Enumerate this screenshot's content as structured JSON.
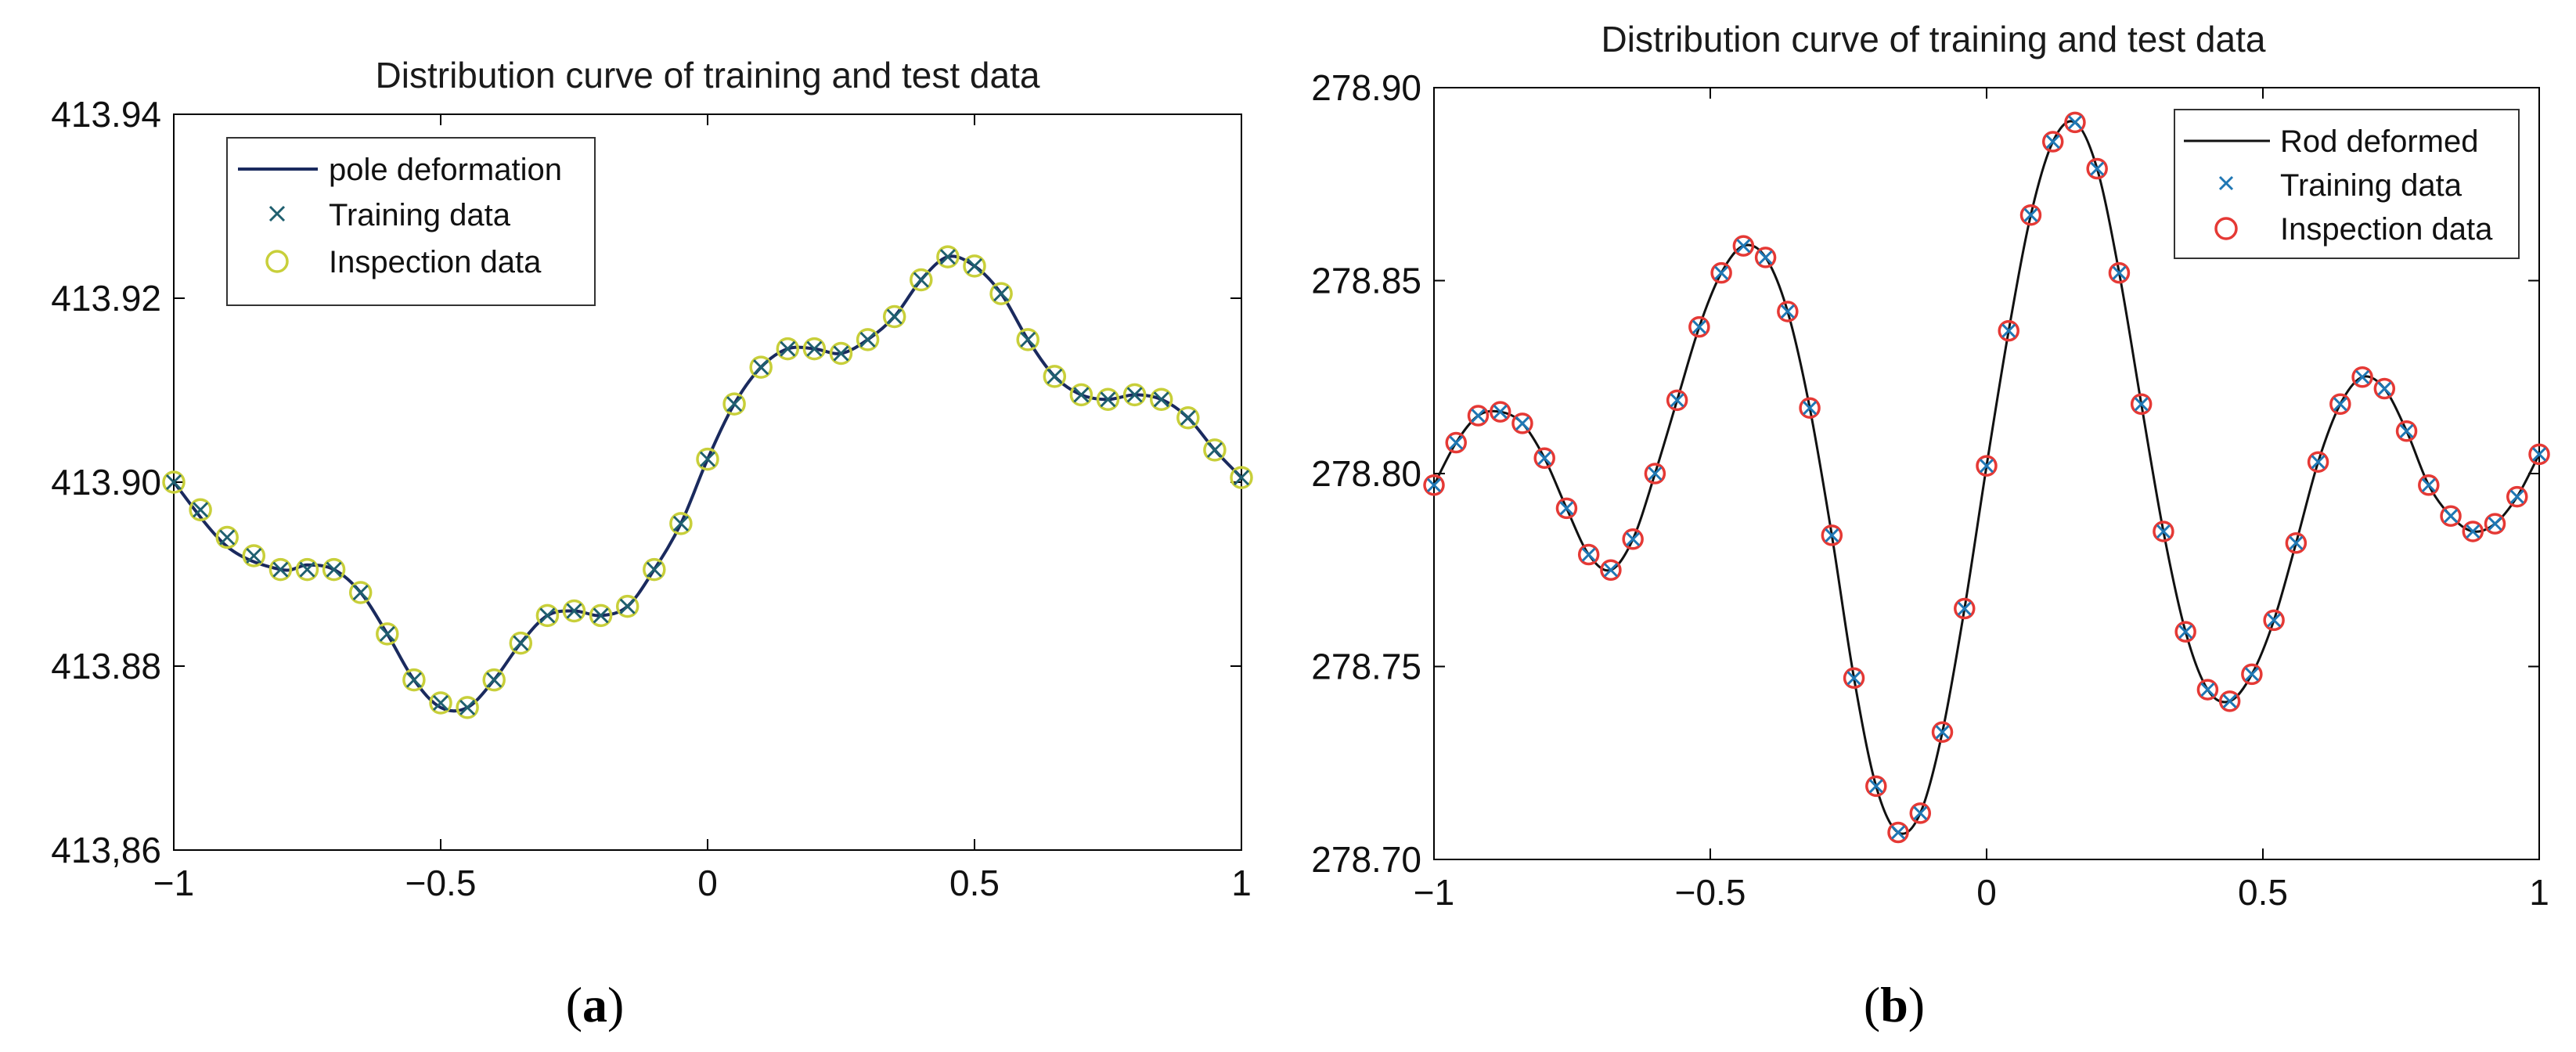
{
  "chart_data": [
    {
      "type": "line",
      "panel": "a",
      "title": "Distribution curve of training and test data",
      "caption_open": "(",
      "caption_letter": "a",
      "caption_close": ")",
      "xlim": [
        -1,
        1
      ],
      "ylim": [
        413.86,
        413.94
      ],
      "xticks": [
        -1,
        -0.5,
        0,
        0.5,
        1
      ],
      "xtick_labels": [
        "−1",
        "−0.5",
        "0",
        "0.5",
        "1"
      ],
      "yticks": [
        413.86,
        413.88,
        413.9,
        413.92,
        413.94
      ],
      "ytick_labels": [
        "413,86",
        "413.88",
        "413.90",
        "413.92",
        "413.94"
      ],
      "legend_position": "top-left",
      "colors": {
        "line": "#1a2a5e",
        "train": "#1f5f6f",
        "inspect": "#c8cf3a"
      },
      "series": [
        {
          "name": "pole deformation",
          "kind": "line",
          "x": [
            -1.0,
            -0.9,
            -0.8,
            -0.75,
            -0.7,
            -0.65,
            -0.6,
            -0.55,
            -0.5,
            -0.45,
            -0.4,
            -0.35,
            -0.3,
            -0.25,
            -0.2,
            -0.15,
            -0.1,
            -0.05,
            0.0,
            0.05,
            0.1,
            0.15,
            0.2,
            0.25,
            0.3,
            0.35,
            0.4,
            0.45,
            0.5,
            0.55,
            0.6,
            0.65,
            0.7,
            0.75,
            0.8,
            0.85,
            0.9,
            0.95,
            1.0
          ],
          "y": [
            413.9,
            413.893,
            413.8905,
            413.891,
            413.8905,
            413.888,
            413.8835,
            413.8785,
            413.8755,
            413.8755,
            413.8785,
            413.8825,
            413.8855,
            413.886,
            413.8855,
            413.8865,
            413.8905,
            413.8955,
            413.9025,
            413.9085,
            413.9125,
            413.9145,
            413.9145,
            413.914,
            413.9155,
            413.918,
            413.922,
            413.9245,
            413.9235,
            413.9205,
            413.9155,
            413.9115,
            413.9095,
            413.909,
            413.9095,
            413.909,
            413.907,
            413.9035,
            413.9005
          ]
        },
        {
          "name": "Training data",
          "kind": "marker-x",
          "x": [
            -1.0,
            -0.95,
            -0.9,
            -0.85,
            -0.8,
            -0.75,
            -0.7,
            -0.65,
            -0.6,
            -0.55,
            -0.5,
            -0.45,
            -0.4,
            -0.35,
            -0.3,
            -0.25,
            -0.2,
            -0.15,
            -0.1,
            -0.05,
            0.0,
            0.05,
            0.1,
            0.15,
            0.2,
            0.25,
            0.3,
            0.35,
            0.4,
            0.45,
            0.5,
            0.55,
            0.6,
            0.65,
            0.7,
            0.75,
            0.8,
            0.85,
            0.9,
            0.95,
            1.0
          ],
          "y": [
            413.9,
            413.897,
            413.894,
            413.892,
            413.8905,
            413.8905,
            413.8905,
            413.888,
            413.8835,
            413.8785,
            413.876,
            413.8755,
            413.8785,
            413.8825,
            413.8855,
            413.886,
            413.8855,
            413.8865,
            413.8905,
            413.8955,
            413.9025,
            413.9085,
            413.9125,
            413.9145,
            413.9145,
            413.914,
            413.9155,
            413.918,
            413.922,
            413.9245,
            413.9235,
            413.9205,
            413.9155,
            413.9115,
            413.9095,
            413.909,
            413.9095,
            413.909,
            413.907,
            413.9035,
            413.9005
          ]
        },
        {
          "name": "Inspection data",
          "kind": "marker-o",
          "x": [
            -1.0,
            -0.95,
            -0.9,
            -0.85,
            -0.8,
            -0.75,
            -0.7,
            -0.65,
            -0.6,
            -0.55,
            -0.5,
            -0.45,
            -0.4,
            -0.35,
            -0.3,
            -0.25,
            -0.2,
            -0.15,
            -0.1,
            -0.05,
            0.0,
            0.05,
            0.1,
            0.15,
            0.2,
            0.25,
            0.3,
            0.35,
            0.4,
            0.45,
            0.5,
            0.55,
            0.6,
            0.65,
            0.7,
            0.75,
            0.8,
            0.85,
            0.9,
            0.95,
            1.0
          ],
          "y": [
            413.9,
            413.897,
            413.894,
            413.892,
            413.8905,
            413.8905,
            413.8905,
            413.888,
            413.8835,
            413.8785,
            413.876,
            413.8755,
            413.8785,
            413.8825,
            413.8855,
            413.886,
            413.8855,
            413.8865,
            413.8905,
            413.8955,
            413.9025,
            413.9085,
            413.9125,
            413.9145,
            413.9145,
            413.914,
            413.9155,
            413.918,
            413.922,
            413.9245,
            413.9235,
            413.9205,
            413.9155,
            413.9115,
            413.9095,
            413.909,
            413.9095,
            413.909,
            413.907,
            413.9035,
            413.9005
          ]
        }
      ]
    },
    {
      "type": "line",
      "panel": "b",
      "title": "Distribution curve of training and test data",
      "caption_open": "(",
      "caption_letter": "b",
      "caption_close": ")",
      "xlim": [
        -1,
        1
      ],
      "ylim": [
        278.7,
        278.9
      ],
      "xticks": [
        -1,
        -0.5,
        0,
        0.5,
        1
      ],
      "xtick_labels": [
        "−1",
        "−0.5",
        "0",
        "0.5",
        "1"
      ],
      "yticks": [
        278.7,
        278.75,
        278.8,
        278.85,
        278.9
      ],
      "ytick_labels": [
        "278.70",
        "278.75",
        "278.80",
        "278.85",
        "278.90"
      ],
      "legend_position": "top-right",
      "colors": {
        "line": "#111111",
        "train": "#1f77b4",
        "inspect": "#e53935"
      },
      "series": [
        {
          "name": "Rod deformed",
          "kind": "line",
          "x": [
            -1.0,
            -0.96,
            -0.92,
            -0.88,
            -0.84,
            -0.8,
            -0.76,
            -0.72,
            -0.68,
            -0.64,
            -0.6,
            -0.56,
            -0.52,
            -0.48,
            -0.44,
            -0.4,
            -0.36,
            -0.32,
            -0.28,
            -0.24,
            -0.2,
            -0.16,
            -0.12,
            -0.08,
            -0.04,
            0.0,
            0.04,
            0.08,
            0.12,
            0.16,
            0.2,
            0.24,
            0.28,
            0.32,
            0.36,
            0.4,
            0.44,
            0.48,
            0.52,
            0.56,
            0.6,
            0.64,
            0.68,
            0.72,
            0.76,
            0.8,
            0.84,
            0.88,
            0.92,
            0.96,
            1.0
          ],
          "y": [
            278.797,
            278.808,
            278.815,
            278.816,
            278.813,
            278.804,
            278.791,
            278.779,
            278.775,
            278.783,
            278.8,
            278.819,
            278.838,
            278.852,
            278.859,
            278.856,
            278.842,
            278.817,
            278.784,
            278.747,
            278.719,
            278.707,
            278.712,
            278.733,
            278.765,
            278.802,
            278.837,
            278.867,
            278.886,
            278.891,
            278.879,
            278.852,
            278.818,
            278.785,
            278.759,
            278.744,
            278.741,
            278.748,
            278.762,
            278.782,
            278.803,
            278.818,
            278.825,
            278.822,
            278.811,
            278.797,
            278.789,
            278.785,
            278.787,
            278.794,
            278.805
          ]
        },
        {
          "name": "Training data",
          "kind": "marker-x",
          "x": [
            -1.0,
            -0.96,
            -0.92,
            -0.88,
            -0.84,
            -0.8,
            -0.76,
            -0.72,
            -0.68,
            -0.64,
            -0.6,
            -0.56,
            -0.52,
            -0.48,
            -0.44,
            -0.4,
            -0.36,
            -0.32,
            -0.28,
            -0.24,
            -0.2,
            -0.16,
            -0.12,
            -0.08,
            -0.04,
            0.0,
            0.04,
            0.08,
            0.12,
            0.16,
            0.2,
            0.24,
            0.28,
            0.32,
            0.36,
            0.4,
            0.44,
            0.48,
            0.52,
            0.56,
            0.6,
            0.64,
            0.68,
            0.72,
            0.76,
            0.8,
            0.84,
            0.88,
            0.92,
            0.96,
            1.0
          ],
          "y": [
            278.797,
            278.808,
            278.815,
            278.816,
            278.813,
            278.804,
            278.791,
            278.779,
            278.775,
            278.783,
            278.8,
            278.819,
            278.838,
            278.852,
            278.859,
            278.856,
            278.842,
            278.817,
            278.784,
            278.747,
            278.719,
            278.707,
            278.712,
            278.733,
            278.765,
            278.802,
            278.837,
            278.867,
            278.886,
            278.891,
            278.879,
            278.852,
            278.818,
            278.785,
            278.759,
            278.744,
            278.741,
            278.748,
            278.762,
            278.782,
            278.803,
            278.818,
            278.825,
            278.822,
            278.811,
            278.797,
            278.789,
            278.785,
            278.787,
            278.794,
            278.805
          ]
        },
        {
          "name": "Inspection data",
          "kind": "marker-o",
          "x": [
            -1.0,
            -0.96,
            -0.92,
            -0.88,
            -0.84,
            -0.8,
            -0.76,
            -0.72,
            -0.68,
            -0.64,
            -0.6,
            -0.56,
            -0.52,
            -0.48,
            -0.44,
            -0.4,
            -0.36,
            -0.32,
            -0.28,
            -0.24,
            -0.2,
            -0.16,
            -0.12,
            -0.08,
            -0.04,
            0.0,
            0.04,
            0.08,
            0.12,
            0.16,
            0.2,
            0.24,
            0.28,
            0.32,
            0.36,
            0.4,
            0.44,
            0.48,
            0.52,
            0.56,
            0.6,
            0.64,
            0.68,
            0.72,
            0.76,
            0.8,
            0.84,
            0.88,
            0.92,
            0.96,
            1.0
          ],
          "y": [
            278.797,
            278.808,
            278.815,
            278.816,
            278.813,
            278.804,
            278.791,
            278.779,
            278.775,
            278.783,
            278.8,
            278.819,
            278.838,
            278.852,
            278.859,
            278.856,
            278.842,
            278.817,
            278.784,
            278.747,
            278.719,
            278.707,
            278.712,
            278.733,
            278.765,
            278.802,
            278.837,
            278.867,
            278.886,
            278.891,
            278.879,
            278.852,
            278.818,
            278.785,
            278.759,
            278.744,
            278.741,
            278.748,
            278.762,
            278.782,
            278.803,
            278.818,
            278.825,
            278.822,
            278.811,
            278.797,
            278.789,
            278.785,
            278.787,
            278.794,
            278.805
          ]
        }
      ]
    }
  ]
}
